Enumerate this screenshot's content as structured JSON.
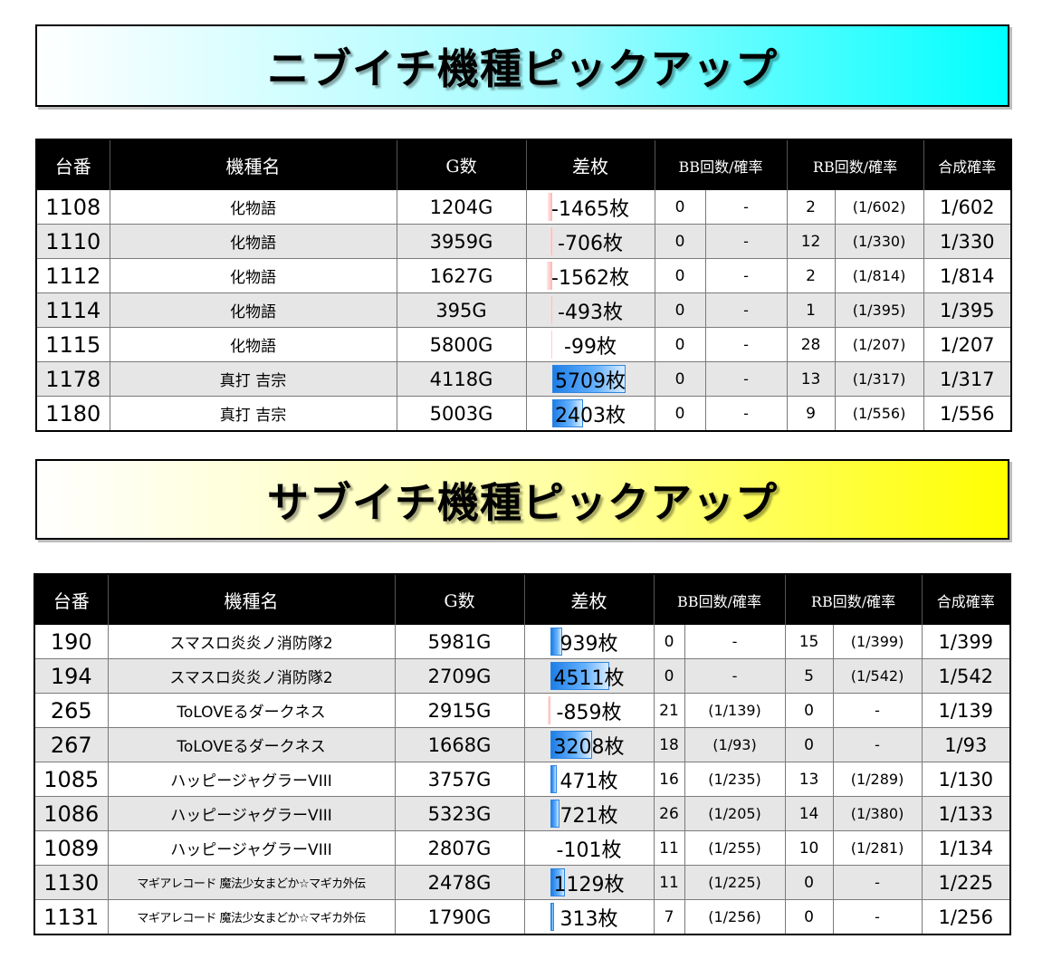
{
  "section1": {
    "title": "ニブイチ機種ピックアップ",
    "headers": [
      "台番",
      "機種名",
      "G数",
      "差枚",
      "BB回数/確率",
      "RB回数/確率",
      "合成確率"
    ],
    "rows": [
      {
        "no": "1108",
        "name": "化物語",
        "g": "1204G",
        "diff": "-1465枚",
        "diff_value": -1465,
        "bb": "0",
        "bb_rate": "-",
        "rb": "2",
        "rb_rate": "(1/602)",
        "total": "1/602"
      },
      {
        "no": "1110",
        "name": "化物語",
        "g": "3959G",
        "diff": "-706枚",
        "diff_value": -706,
        "bb": "0",
        "bb_rate": "-",
        "rb": "12",
        "rb_rate": "(1/330)",
        "total": "1/330"
      },
      {
        "no": "1112",
        "name": "化物語",
        "g": "1627G",
        "diff": "-1562枚",
        "diff_value": -1562,
        "bb": "0",
        "bb_rate": "-",
        "rb": "2",
        "rb_rate": "(1/814)",
        "total": "1/814"
      },
      {
        "no": "1114",
        "name": "化物語",
        "g": "395G",
        "diff": "-493枚",
        "diff_value": -493,
        "bb": "0",
        "bb_rate": "-",
        "rb": "1",
        "rb_rate": "(1/395)",
        "total": "1/395"
      },
      {
        "no": "1115",
        "name": "化物語",
        "g": "5800G",
        "diff": "-99枚",
        "diff_value": -99,
        "bb": "0",
        "bb_rate": "-",
        "rb": "28",
        "rb_rate": "(1/207)",
        "total": "1/207"
      },
      {
        "no": "1178",
        "name": "真打 吉宗",
        "g": "4118G",
        "diff": "5709枚",
        "diff_value": 5709,
        "bb": "0",
        "bb_rate": "-",
        "rb": "13",
        "rb_rate": "(1/317)",
        "total": "1/317"
      },
      {
        "no": "1180",
        "name": "真打 吉宗",
        "g": "5003G",
        "diff": "2403枚",
        "diff_value": 2403,
        "bb": "0",
        "bb_rate": "-",
        "rb": "9",
        "rb_rate": "(1/556)",
        "total": "1/556"
      }
    ]
  },
  "section2": {
    "title": "サブイチ機種ピックアップ",
    "headers": [
      "台番",
      "機種名",
      "G数",
      "差枚",
      "BB回数/確率",
      "RB回数/確率",
      "合成確率"
    ],
    "rows": [
      {
        "no": "190",
        "name": "スマスロ炎炎ノ消防隊2",
        "g": "5981G",
        "diff": "939枚",
        "diff_value": 939,
        "bb": "0",
        "bb_rate": "-",
        "rb": "15",
        "rb_rate": "(1/399)",
        "total": "1/399"
      },
      {
        "no": "194",
        "name": "スマスロ炎炎ノ消防隊2",
        "g": "2709G",
        "diff": "4511枚",
        "diff_value": 4511,
        "bb": "0",
        "bb_rate": "-",
        "rb": "5",
        "rb_rate": "(1/542)",
        "total": "1/542"
      },
      {
        "no": "265",
        "name": "ToLOVEるダークネス",
        "g": "2915G",
        "diff": "-859枚",
        "diff_value": -859,
        "bb": "21",
        "bb_rate": "(1/139)",
        "rb": "0",
        "rb_rate": "-",
        "total": "1/139"
      },
      {
        "no": "267",
        "name": "ToLOVEるダークネス",
        "g": "1668G",
        "diff": "3208枚",
        "diff_value": 3208,
        "bb": "18",
        "bb_rate": "(1/93)",
        "rb": "0",
        "rb_rate": "-",
        "total": "1/93"
      },
      {
        "no": "1085",
        "name": "ハッピージャグラーVIII",
        "g": "3757G",
        "diff": "471枚",
        "diff_value": 471,
        "bb": "16",
        "bb_rate": "(1/235)",
        "rb": "13",
        "rb_rate": "(1/289)",
        "total": "1/130"
      },
      {
        "no": "1086",
        "name": "ハッピージャグラーVIII",
        "g": "5323G",
        "diff": "721枚",
        "diff_value": 721,
        "bb": "26",
        "bb_rate": "(1/205)",
        "rb": "14",
        "rb_rate": "(1/380)",
        "total": "1/133"
      },
      {
        "no": "1089",
        "name": "ハッピージャグラーVIII",
        "g": "2807G",
        "diff": "-101枚",
        "diff_value": -101,
        "bb": "11",
        "bb_rate": "(1/255)",
        "rb": "10",
        "rb_rate": "(1/281)",
        "total": "1/134"
      },
      {
        "no": "1130",
        "name": "マギアレコード 魔法少女まどか☆マギカ外伝",
        "g": "2478G",
        "diff": "1129枚",
        "diff_value": 1129,
        "bb": "11",
        "bb_rate": "(1/225)",
        "rb": "0",
        "rb_rate": "-",
        "total": "1/225"
      },
      {
        "no": "1131",
        "name": "マギアレコード 魔法少女まどか☆マギカ外伝",
        "g": "1790G",
        "diff": "313枚",
        "diff_value": 313,
        "bb": "7",
        "bb_rate": "(1/256)",
        "rb": "0",
        "rb_rate": "-",
        "total": "1/256"
      }
    ]
  }
}
